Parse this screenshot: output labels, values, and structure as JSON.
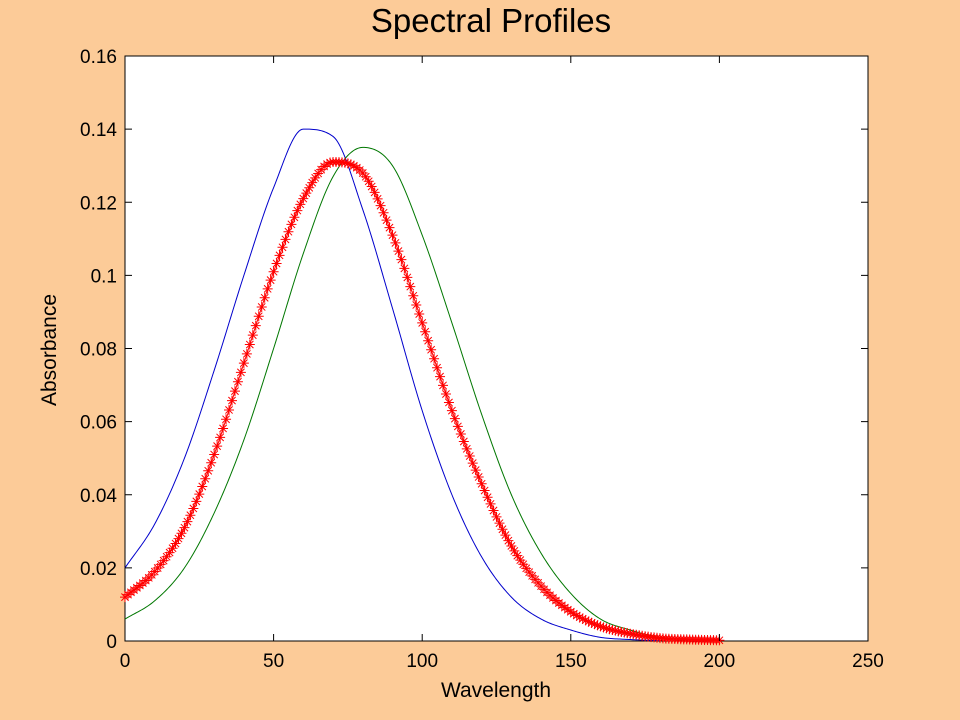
{
  "chart_data": {
    "type": "line",
    "title": "Spectral Profiles",
    "xlabel": "Wavelength",
    "ylabel": "Absorbance",
    "xlim": [
      0,
      250
    ],
    "ylim": [
      0,
      0.16
    ],
    "xticks": [
      0,
      50,
      100,
      150,
      200,
      250
    ],
    "xtick_labels": [
      "0",
      "50",
      "100",
      "150",
      "200",
      "250"
    ],
    "yticks": [
      0,
      0.02,
      0.04,
      0.06,
      0.08,
      0.1,
      0.12,
      0.14,
      0.16
    ],
    "ytick_labels": [
      "0",
      "0.02",
      "0.04",
      "0.06",
      "0.08",
      "0.1",
      "0.12",
      "0.14",
      "0.16"
    ],
    "grid": false,
    "background_color": "#fccb98",
    "plot_background_color": "#ffffff",
    "series": [
      {
        "color": "#0000cc",
        "marker": "none",
        "x": [
          0,
          10,
          20,
          30,
          40,
          50,
          60,
          70,
          80,
          90,
          100,
          110,
          120,
          130,
          140,
          150,
          160,
          170,
          180
        ],
        "y": [
          0.02,
          0.032,
          0.05,
          0.074,
          0.1,
          0.124,
          0.14,
          0.138,
          0.118,
          0.091,
          0.063,
          0.04,
          0.023,
          0.012,
          0.006,
          0.003,
          0.001,
          0.0004,
          0.0001
        ]
      },
      {
        "color": "#007700",
        "marker": "none",
        "x": [
          0,
          10,
          20,
          30,
          40,
          50,
          60,
          70,
          80,
          90,
          100,
          110,
          120,
          130,
          140,
          150,
          160,
          170,
          180,
          190,
          200
        ],
        "y": [
          0.006,
          0.011,
          0.02,
          0.035,
          0.055,
          0.08,
          0.106,
          0.127,
          0.135,
          0.13,
          0.111,
          0.087,
          0.062,
          0.04,
          0.024,
          0.013,
          0.006,
          0.003,
          0.001,
          0.0004,
          0.0001
        ]
      },
      {
        "color": "#ff0000",
        "marker": "*",
        "x": [
          0,
          10,
          20,
          30,
          40,
          50,
          60,
          70,
          80,
          90,
          100,
          110,
          120,
          130,
          140,
          150,
          160,
          170,
          180,
          190,
          200
        ],
        "y": [
          0.012,
          0.019,
          0.031,
          0.051,
          0.076,
          0.101,
          0.121,
          0.131,
          0.128,
          0.111,
          0.087,
          0.063,
          0.043,
          0.026,
          0.015,
          0.008,
          0.004,
          0.002,
          0.0008,
          0.0004,
          0.0002
        ]
      }
    ]
  }
}
